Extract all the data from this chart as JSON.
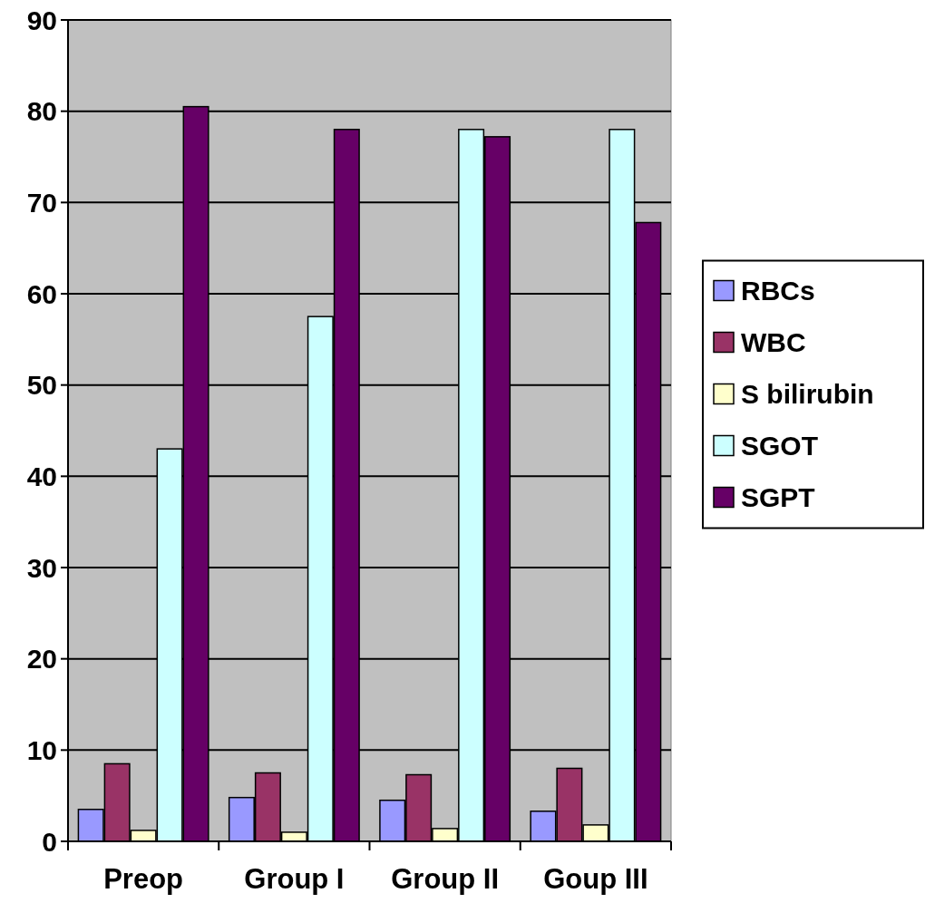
{
  "chart_data": {
    "type": "bar",
    "categories": [
      "Preop",
      "Group I",
      "Group II",
      "Goup III"
    ],
    "series": [
      {
        "name": "RBCs",
        "color": "#9999ff",
        "values": [
          3.5,
          4.8,
          4.5,
          3.3
        ]
      },
      {
        "name": "WBC",
        "color": "#993366",
        "values": [
          8.5,
          7.5,
          7.3,
          8
        ]
      },
      {
        "name": "S bilirubin",
        "color": "#ffffcc",
        "values": [
          1.2,
          1,
          1.4,
          1.8
        ]
      },
      {
        "name": "SGOT",
        "color": "#ccffff",
        "values": [
          43,
          57.5,
          78,
          78
        ]
      },
      {
        "name": "SGPT",
        "color": "#660066",
        "values": [
          80.5,
          78,
          77.2,
          67.8
        ]
      }
    ],
    "ylim": [
      0,
      90
    ],
    "yticks": [
      0,
      10,
      20,
      30,
      40,
      50,
      60,
      70,
      80,
      90
    ],
    "grid": "y",
    "legend": "right"
  }
}
